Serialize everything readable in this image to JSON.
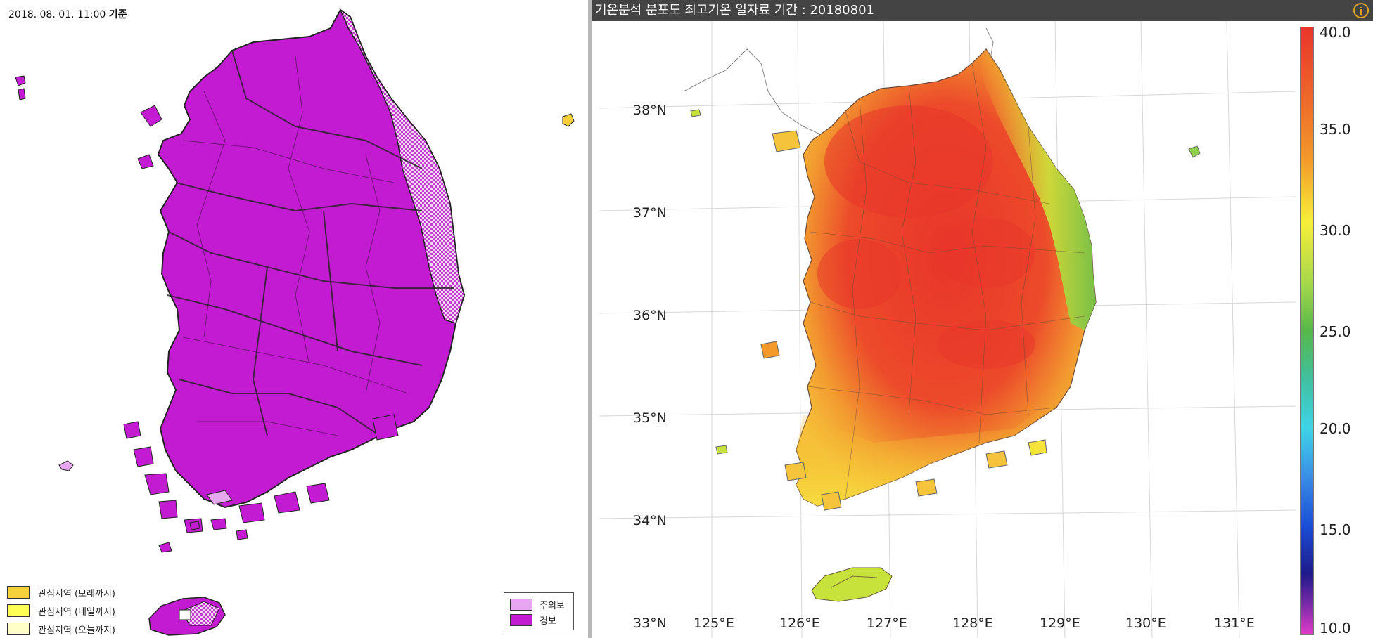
{
  "left": {
    "timestamp": "2018. 08. 01. 11:00",
    "timestamp_suffix": "기준",
    "legend_interest": [
      {
        "label": "관심지역 (모레까지)",
        "color": "#f5d23c"
      },
      {
        "label": "관심지역 (내일까지)",
        "color": "#ffff55"
      },
      {
        "label": "관심지역 (오늘까지)",
        "color": "#ffffc8"
      }
    ],
    "legend_alerts": [
      {
        "label": "주의보",
        "color": "#e7a6f0"
      },
      {
        "label": "경보",
        "color": "#c21bd1"
      }
    ]
  },
  "right": {
    "title": "기온분석 분포도 최고기온 일자료 기간 : 20180801",
    "info_icon": "info-icon",
    "lat_labels": [
      "38°N",
      "37°N",
      "36°N",
      "35°N",
      "34°N",
      "33°N"
    ],
    "lon_labels": [
      "125°E",
      "126°E",
      "127°E",
      "128°E",
      "129°E",
      "130°E",
      "131°E"
    ],
    "colorbar_ticks": [
      "40.0",
      "35.0",
      "30.0",
      "25.0",
      "20.0",
      "15.0",
      "10.0"
    ],
    "colorbar_colors": [
      "#e8352a",
      "#f39a2a",
      "#f8ef3a",
      "#56b849",
      "#3fd3e8",
      "#1a4fd6",
      "#1f1a8c",
      "#e03bc9"
    ]
  }
}
